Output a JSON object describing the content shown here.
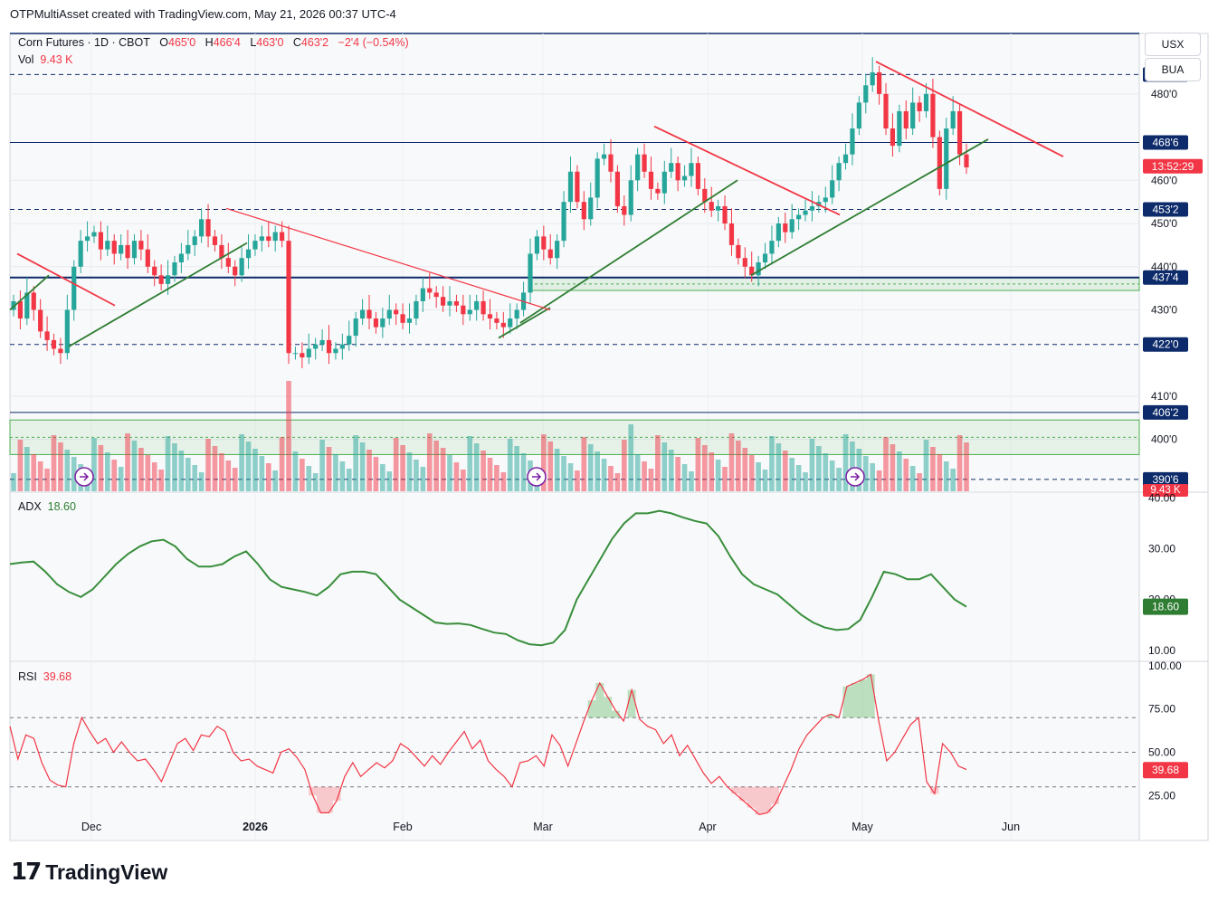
{
  "credit": "OTPMultiAsset created with TradingView.com, May 21, 2026 00:37 UTC-4",
  "brand": {
    "logo_text": "17",
    "name": "TradingView"
  },
  "currency_buttons": [
    "USX",
    "BUA"
  ],
  "legend": {
    "symbol": "Corn Futures · 1D · CBOT",
    "open_label": "O",
    "open": "465'0",
    "high_label": "H",
    "high": "466'4",
    "low_label": "L",
    "low": "463'0",
    "close_label": "C",
    "close": "463'2",
    "change": "−2'4 (−0.54%)",
    "vol_label": "Vol",
    "vol": "9.43 K",
    "adx_label": "ADX",
    "adx": "18.60",
    "rsi_label": "RSI",
    "rsi": "39.68"
  },
  "colors": {
    "up": "#26a69a",
    "down": "#f23645",
    "trend_green": "#2e7d32",
    "trend_red": "#f23645",
    "level_blue": "#0d2b6b",
    "adx_line": "#388e3c",
    "rsi_line": "#f23645"
  },
  "chart_data": [
    {
      "type": "candlestick",
      "title": "Corn Futures · 1D · CBOT",
      "x_ticks": [
        "Dec",
        "2026",
        "Feb",
        "Mar",
        "Apr",
        "May",
        "Jun"
      ],
      "y_ticks": [
        "480'0",
        "460'0",
        "450'0",
        "440'0",
        "430'0",
        "410'0",
        "400'0"
      ],
      "ylim": [
        388,
        494
      ],
      "price_labels": [
        {
          "value": 484.5,
          "text": "484'4",
          "style": "dashed"
        },
        {
          "value": 468.75,
          "text": "468'6",
          "style": "solid"
        },
        {
          "value": 463.25,
          "text": "13:52:29",
          "style": "current"
        },
        {
          "value": 453.25,
          "text": "453'2",
          "style": "dashed"
        },
        {
          "value": 437.5,
          "text": "437'4",
          "style": "solid"
        },
        {
          "value": 422.0,
          "text": "422'0",
          "style": "dashed"
        },
        {
          "value": 406.25,
          "text": "406'2",
          "style": "solid"
        },
        {
          "value": 390.75,
          "text": "390'6",
          "style": "dashed"
        }
      ],
      "closes": [
        432,
        428,
        434,
        430,
        425,
        423,
        421,
        420,
        430,
        440,
        446,
        447,
        448,
        444,
        446,
        443,
        445,
        442,
        446,
        444,
        440,
        438,
        436,
        438,
        441,
        443,
        445,
        447,
        451,
        447,
        445,
        442,
        440,
        438,
        442,
        444,
        446,
        447,
        446,
        448,
        446,
        420,
        420,
        419,
        421,
        422,
        423,
        420,
        421,
        422,
        424,
        428,
        430,
        428,
        426,
        428,
        430,
        429,
        427,
        428,
        432,
        435,
        434,
        433,
        431,
        432,
        431,
        429,
        430,
        432,
        429,
        428,
        427,
        426,
        428,
        430,
        434,
        443,
        447,
        444,
        442,
        446,
        455,
        462,
        455,
        451,
        456,
        465,
        466,
        462,
        454,
        452,
        460,
        466,
        462,
        458,
        457,
        462,
        464,
        460,
        461,
        464,
        458,
        455,
        453,
        454,
        450,
        445,
        442,
        440,
        438,
        441,
        443,
        446,
        450,
        448,
        451,
        452,
        453,
        454,
        455,
        456,
        460,
        464,
        466,
        472,
        478,
        482,
        485,
        480,
        472,
        468,
        476,
        472,
        478,
        476,
        480,
        470,
        458,
        472,
        476,
        466,
        463
      ],
      "volume_label": "9.43 K",
      "legend_position": "top-left"
    },
    {
      "type": "line",
      "title": "ADX",
      "current": 18.6,
      "y_ticks": [
        "40.00",
        "30.00",
        "20.00",
        "10.00"
      ],
      "ylim": [
        8,
        41
      ],
      "values": [
        27,
        27.3,
        27.5,
        25.5,
        23,
        21.5,
        20.5,
        22,
        24.5,
        27,
        29,
        30.5,
        31.5,
        31.8,
        30.5,
        28,
        26.5,
        26.5,
        27,
        28.5,
        29.5,
        27,
        24,
        22.5,
        22,
        21.5,
        20.8,
        22.5,
        25,
        25.5,
        25.5,
        25,
        22.5,
        20,
        18.5,
        17,
        15.5,
        15.2,
        15.3,
        15,
        14.2,
        13.5,
        13.2,
        12,
        11.2,
        11,
        11.5,
        14,
        20,
        24,
        28,
        32,
        35,
        37,
        37,
        37.5,
        37,
        36.2,
        35.5,
        35,
        32.5,
        28.5,
        25,
        23,
        22,
        21,
        19,
        17,
        15.5,
        14.5,
        14,
        14.2,
        16,
        20.5,
        25.5,
        25,
        24,
        24,
        25,
        22.5,
        20,
        18.6
      ]
    },
    {
      "type": "line",
      "title": "RSI",
      "current": 39.68,
      "y_ticks": [
        "100.00",
        "75.00",
        "50.00",
        "25.00"
      ],
      "ylim": [
        10,
        102
      ],
      "bands": [
        70,
        50,
        30
      ],
      "values": [
        65,
        46,
        60,
        58,
        44,
        34,
        31,
        30,
        55,
        70,
        62,
        55,
        58,
        50,
        56,
        50,
        45,
        46,
        40,
        33,
        44,
        55,
        58,
        51,
        60,
        59,
        65,
        62,
        50,
        45,
        46,
        42,
        40,
        38,
        50,
        52,
        47,
        40,
        25,
        15,
        15,
        22,
        36,
        44,
        36,
        40,
        44,
        41,
        45,
        55,
        52,
        47,
        42,
        48,
        43,
        50,
        56,
        62,
        52,
        57,
        45,
        40,
        36,
        30,
        44,
        45,
        48,
        42,
        60,
        54,
        42,
        55,
        68,
        80,
        90,
        82,
        74,
        68,
        86,
        69,
        65,
        63,
        55,
        60,
        48,
        54,
        46,
        38,
        32,
        36,
        30,
        26,
        22,
        18,
        14,
        15,
        20,
        30,
        40,
        52,
        60,
        65,
        70,
        72,
        70,
        88,
        90,
        92,
        95,
        68,
        45,
        50,
        58,
        66,
        70,
        33,
        26,
        55,
        50,
        42,
        40
      ]
    }
  ]
}
